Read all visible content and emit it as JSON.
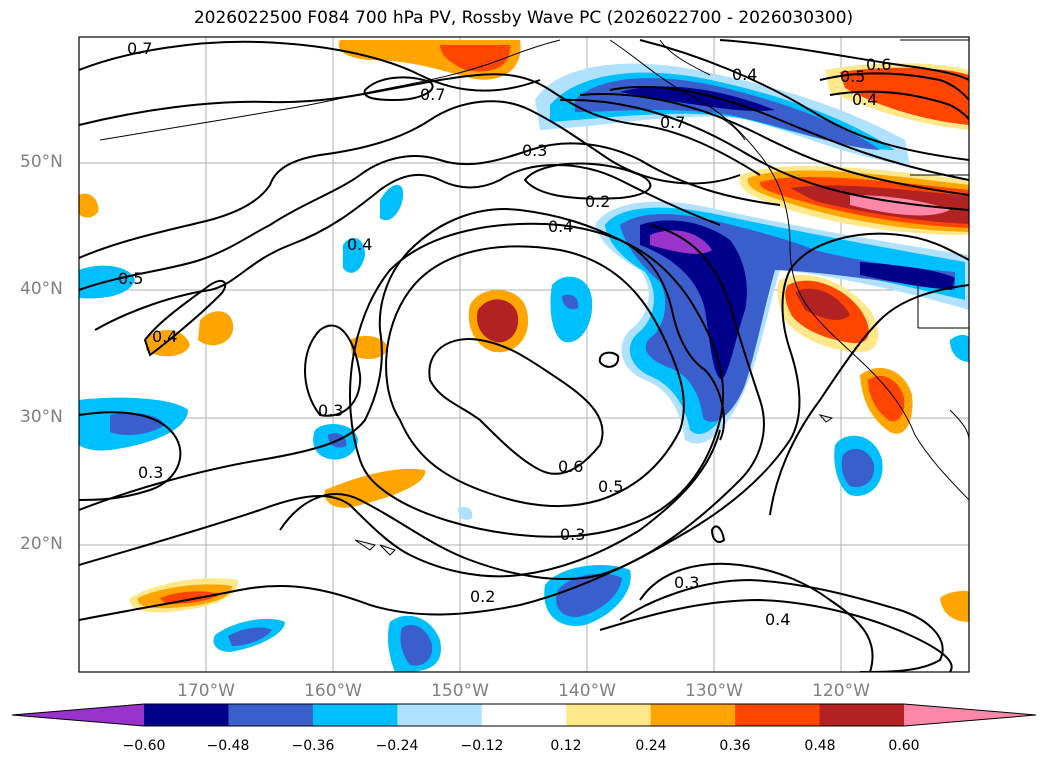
{
  "title": "2026022500 F084 700 hPa PV, Rossby Wave PC (2026022700 - 2026030300)",
  "map": {
    "lat_labels": [
      {
        "text": "50°N",
        "lat": 50
      },
      {
        "text": "40°N",
        "lat": 40
      },
      {
        "text": "30°N",
        "lat": 30
      },
      {
        "text": "20°N",
        "lat": 20
      }
    ],
    "lon_labels": [
      {
        "text": "170°W",
        "lon": -170
      },
      {
        "text": "160°W",
        "lon": -160
      },
      {
        "text": "150°W",
        "lon": -150
      },
      {
        "text": "140°W",
        "lon": -140
      },
      {
        "text": "130°W",
        "lon": -130
      },
      {
        "text": "120°W",
        "lon": -120
      }
    ],
    "contour_labels": [
      "0.7",
      "0.7",
      "0.4",
      "0.5",
      "0.6",
      "0.4",
      "0.7",
      "0.3",
      "0.2",
      "0.4",
      "0.4",
      "0.5",
      "0.4",
      "0.3",
      "0.3",
      "0.6",
      "0.5",
      "0.3",
      "0.3",
      "0.2",
      "0.4"
    ]
  },
  "colorbar": {
    "colors": [
      "#9933cc",
      "#00008b",
      "#3a5fcd",
      "#00bfff",
      "#b0e2ff",
      "#ffffff",
      "#ffe88a",
      "#ffa500",
      "#ff4500",
      "#b22222",
      "#ff88aa"
    ],
    "ticks": [
      "−0.60",
      "−0.48",
      "−0.36",
      "−0.24",
      "−0.12",
      "0.12",
      "0.24",
      "0.36",
      "0.48",
      "0.60"
    ]
  }
}
